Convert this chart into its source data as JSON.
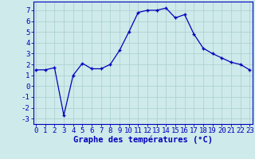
{
  "hours": [
    0,
    1,
    2,
    3,
    4,
    5,
    6,
    7,
    8,
    9,
    10,
    11,
    12,
    13,
    14,
    15,
    16,
    17,
    18,
    19,
    20,
    21,
    22,
    23
  ],
  "temperatures": [
    1.5,
    1.5,
    1.7,
    -2.7,
    1.0,
    2.1,
    1.6,
    1.6,
    2.0,
    3.3,
    5.0,
    6.8,
    7.0,
    7.0,
    7.2,
    6.3,
    6.6,
    4.8,
    3.5,
    3.0,
    2.6,
    2.2,
    2.0,
    1.5
  ],
  "xlabel": "Graphe des températures (°C)",
  "background_color": "#ceeaea",
  "line_color": "#0000bb",
  "grid_color": "#aacece",
  "ylim": [
    -3.5,
    7.8
  ],
  "yticks": [
    -3,
    -2,
    -1,
    0,
    1,
    2,
    3,
    4,
    5,
    6,
    7
  ],
  "axis_color": "#0000bb",
  "tick_fontsize": 6.5,
  "xlabel_fontsize": 7.5
}
